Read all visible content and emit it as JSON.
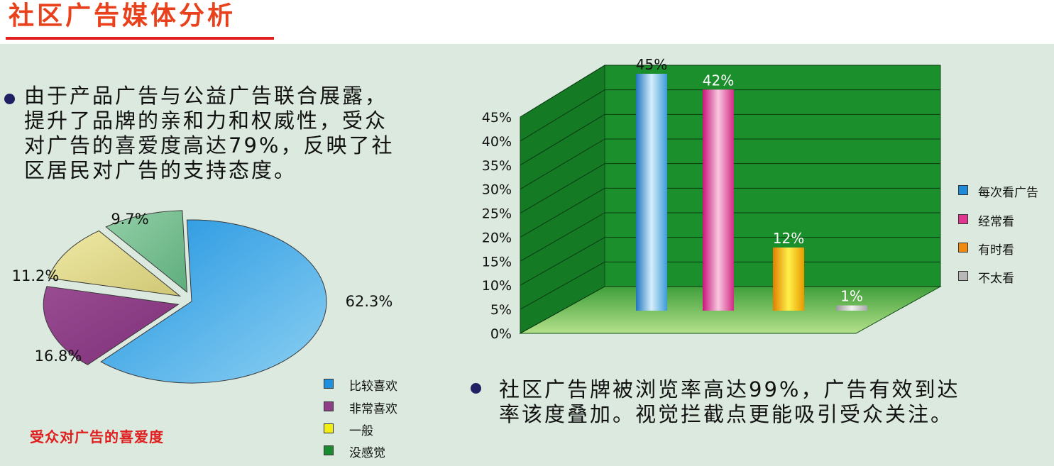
{
  "header": {
    "title": "社区广告媒体分析"
  },
  "text_blocks": {
    "pie_note_lines": [
      "由于产品广告与公益广告联合展露，",
      "提升了品牌的亲和力和权威性，受众",
      "对广告的喜爱度高达79%，反映了社",
      "区居民对广告的支持态度。"
    ],
    "bar_note_lines": [
      "社区广告牌被浏览率高达99%，广告有效到达",
      "率该度叠加。视觉拦截点更能吸引受众关注。"
    ]
  },
  "chart_data": [
    {
      "type": "pie",
      "title": "受众对广告的喜爱度",
      "slices": [
        {
          "name": "比较喜欢",
          "value": 62.3,
          "label": "62.3%",
          "color": "#3aa5e6"
        },
        {
          "name": "非常喜欢",
          "value": 16.8,
          "label": "16.8%",
          "color": "#8e3d87"
        },
        {
          "name": "一般",
          "value": 11.2,
          "label": "11.2%",
          "color": "#dcd68c"
        },
        {
          "name": "没感觉",
          "value": 9.7,
          "label": "9.7%",
          "color": "#7cbf94"
        }
      ],
      "legend_position": "bottom-right",
      "legend_colors": [
        "#1e90e0",
        "#8e3d87",
        "#f2ee10",
        "#1a8a2e"
      ]
    },
    {
      "type": "bar",
      "style": "3d",
      "categories": [
        "每次看广告",
        "经常看",
        "有时看",
        "不太看"
      ],
      "values": [
        45,
        42,
        12,
        1
      ],
      "value_labels": [
        "45%",
        "42%",
        "12%",
        "1%"
      ],
      "colors": [
        "#3b9bd9",
        "#e0368f",
        "#f2a20c",
        "#b8b8b8"
      ],
      "ylim": [
        0,
        45
      ],
      "ytick_labels": [
        "0%",
        "5%",
        "10%",
        "15%",
        "20%",
        "25%",
        "30%",
        "35%",
        "40%",
        "45%"
      ],
      "grid": true,
      "wall_color": "#1b8f2c",
      "floor_color": "#8fd06a",
      "legend_position": "right"
    }
  ]
}
